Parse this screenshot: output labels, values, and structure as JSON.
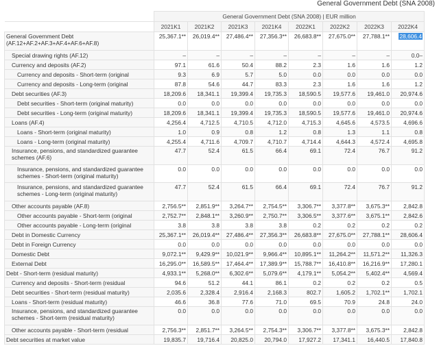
{
  "page_title": "General Government Debt (SNA 2008)",
  "table": {
    "caption": "General Government Debt (SNA 2008) | EUR million",
    "columns": [
      "2021K1",
      "2021K2",
      "2021K3",
      "2021K4",
      "2022K1",
      "2022K2",
      "2022K3",
      "2022K4"
    ],
    "selected_cell": {
      "row": 0,
      "col": 7
    },
    "rows": [
      {
        "label": "General Government Debt (AF.12+AF.2+AF.3+AF.4+AF.6+AF.8)",
        "indent": 0,
        "tall": true,
        "values": [
          "25,367.1**",
          "26,019.4**",
          "27,486.4**",
          "27,356.3**",
          "26,683.8**",
          "27,675.0**",
          "27,788.1**",
          "28,606.4"
        ]
      },
      {
        "label": "Special drawing rights (AF.12)",
        "indent": 1,
        "values": [
          "–",
          "–",
          "–",
          "–",
          "–",
          "–",
          "–",
          "0.0–"
        ]
      },
      {
        "label": "Currency and deposits (AF.2)",
        "indent": 1,
        "values": [
          "97.1",
          "61.6",
          "50.4",
          "88.2",
          "2.3",
          "1.6",
          "1.6",
          "1.2"
        ]
      },
      {
        "label": "Currency and deposits - Short-term (original",
        "indent": 2,
        "values": [
          "9.3",
          "6.9",
          "5.7",
          "5.0",
          "0.0",
          "0.0",
          "0.0",
          "0.0"
        ]
      },
      {
        "label": "Currency and deposits - Long-term (original",
        "indent": 2,
        "values": [
          "87.8",
          "54.6",
          "44.7",
          "83.3",
          "2.3",
          "1.6",
          "1.6",
          "1.2"
        ]
      },
      {
        "label": "Debt securities (AF.3)",
        "indent": 1,
        "values": [
          "18,209.6",
          "18,341.1",
          "19,399.4",
          "19,735.3",
          "18,590.5",
          "19,577.6",
          "19,461.0",
          "20,974.6"
        ]
      },
      {
        "label": "Debt securities - Short-term (original maturity)",
        "indent": 2,
        "values": [
          "0.0",
          "0.0",
          "0.0",
          "0.0",
          "0.0",
          "0.0",
          "0.0",
          "0.0"
        ]
      },
      {
        "label": "Debt securities - Long-term (original maturity)",
        "indent": 2,
        "values": [
          "18,209.6",
          "18,341.1",
          "19,399.4",
          "19,735.3",
          "18,590.5",
          "19,577.6",
          "19,461.0",
          "20,974.6"
        ]
      },
      {
        "label": "Loans (AF.4)",
        "indent": 1,
        "values": [
          "4,256.4",
          "4,712.5",
          "4,710.5",
          "4,712.0",
          "4,715.3",
          "4,645.6",
          "4,573.5",
          "4,696.6"
        ]
      },
      {
        "label": "Loans - Short-term (original maturity)",
        "indent": 2,
        "values": [
          "1.0",
          "0.9",
          "0.8",
          "1.2",
          "0.8",
          "1.3",
          "1.1",
          "0.8"
        ]
      },
      {
        "label": "Loans - Long-term (original maturity)",
        "indent": 2,
        "values": [
          "4,255.4",
          "4,711.6",
          "4,709.7",
          "4,710.7",
          "4,714.4",
          "4,644.3",
          "4,572.4",
          "4,695.8"
        ]
      },
      {
        "label": "Insurance, pensions, and standardized guarantee schemes (AF.6)",
        "indent": 1,
        "tall": true,
        "values": [
          "47.7",
          "52.4",
          "61.5",
          "66.4",
          "69.1",
          "72.4",
          "76.7",
          "91.2"
        ]
      },
      {
        "label": "Insurance, pensions, and standardized guarantee schemes - Short-term (original maturity)",
        "indent": 2,
        "tall": true,
        "values": [
          "0.0",
          "0.0",
          "0.0",
          "0.0",
          "0.0",
          "0.0",
          "0.0",
          "0.0"
        ]
      },
      {
        "label": "Insurance, pensions, and standardized guarantee schemes - Long-term (original maturity)",
        "indent": 2,
        "tall": true,
        "values": [
          "47.7",
          "52.4",
          "61.5",
          "66.4",
          "69.1",
          "72.4",
          "76.7",
          "91.2"
        ]
      },
      {
        "label": "Other accounts payable (AF.8)",
        "indent": 1,
        "values": [
          "2,756.5**",
          "2,851.9**",
          "3,264.7**",
          "2,754.5**",
          "3,306.7**",
          "3,377.8**",
          "3,675.3**",
          "2,842.8"
        ]
      },
      {
        "label": "Other accounts payable - Short-term (original",
        "indent": 2,
        "values": [
          "2,752.7**",
          "2,848.1**",
          "3,260.9**",
          "2,750.7**",
          "3,306.5**",
          "3,377.6**",
          "3,675.1**",
          "2,842.6"
        ]
      },
      {
        "label": "Other accounts payable - Long-term (original",
        "indent": 2,
        "values": [
          "3.8",
          "3.8",
          "3.8",
          "3.8",
          "0.2",
          "0.2",
          "0.2",
          "0.2"
        ]
      },
      {
        "label": "Debt in Domestic Currency",
        "indent": 1,
        "values": [
          "25,367.1**",
          "26,019.4**",
          "27,486.4**",
          "27,356.3**",
          "26,683.8**",
          "27,675.0**",
          "27,788.1**",
          "28,606.4"
        ]
      },
      {
        "label": "Debt in Foreign Currency",
        "indent": 1,
        "values": [
          "0.0",
          "0.0",
          "0.0",
          "0.0",
          "0.0",
          "0.0",
          "0.0",
          "0.0"
        ]
      },
      {
        "label": "Domestic Debt",
        "indent": 1,
        "values": [
          "9,072.1**",
          "9,429.9**",
          "10,021.9**",
          "9,966.4**",
          "10,895.1**",
          "11,264.2**",
          "11,571.2**",
          "11,326.3"
        ]
      },
      {
        "label": "External Debt",
        "indent": 1,
        "values": [
          "16,295.0**",
          "16,589.5**",
          "17,464.4**",
          "17,389.9**",
          "15,788.7**",
          "16,410.8**",
          "16,216.9**",
          "17,280.1"
        ]
      },
      {
        "label": "Debt - Short-term (residual maturity)",
        "indent": 0,
        "values": [
          "4,933.1**",
          "5,268.0**",
          "6,302.6**",
          "5,079.6**",
          "4,179.1**",
          "5,054.2**",
          "5,402.4**",
          "4,569.4"
        ]
      },
      {
        "label": "Currency and deposits - Short-term (residual",
        "indent": 1,
        "values": [
          "94.6",
          "51.2",
          "44.1",
          "86.1",
          "0.2",
          "0.2",
          "0.2",
          "0.5"
        ]
      },
      {
        "label": "Debt securities - Short-term (residual maturity)",
        "indent": 1,
        "values": [
          "2,035.6",
          "2,328.4",
          "2,916.4",
          "2,168.3",
          "802.7",
          "1,605.2",
          "1,702.1**",
          "1,702.1"
        ]
      },
      {
        "label": "Loans - Short-term (residual maturity)",
        "indent": 1,
        "values": [
          "46.6",
          "36.8",
          "77.6",
          "71.0",
          "69.5",
          "70.9",
          "24.8",
          "24.0"
        ]
      },
      {
        "label": "Insurance, pensions, and standardized guarantee schemes - Short-term (residual maturity)",
        "indent": 1,
        "tall": true,
        "values": [
          "0.0",
          "0.0",
          "0.0",
          "0.0",
          "0.0",
          "0.0",
          "0.0",
          "0.0"
        ]
      },
      {
        "label": "Other accounts payable - Short-term (residual",
        "indent": 1,
        "values": [
          "2,756.3**",
          "2,851.7**",
          "3,264.5**",
          "2,754.3**",
          "3,306.7**",
          "3,377.8**",
          "3,675.3**",
          "2,842.8"
        ]
      },
      {
        "label": "Debt securities at market value",
        "indent": 0,
        "values": [
          "19,835.7",
          "19,716.4",
          "20,825.0",
          "20,794.0",
          "17,927.2",
          "17,341.1",
          "16,440.5",
          "17,840.8"
        ]
      }
    ]
  }
}
